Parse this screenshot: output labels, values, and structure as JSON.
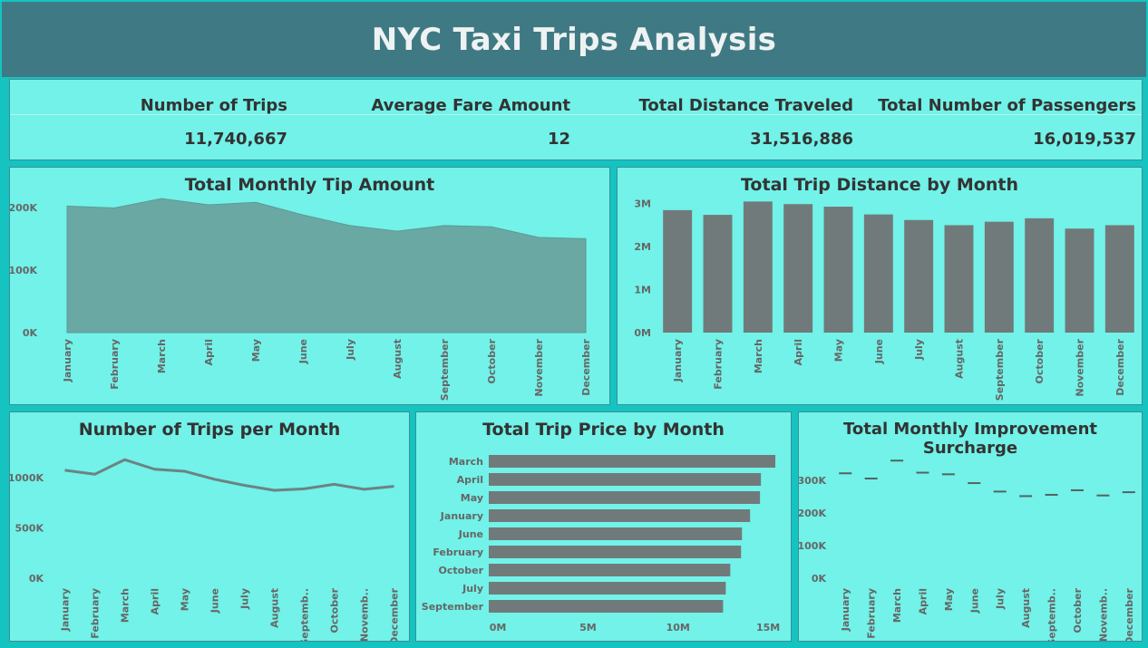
{
  "title": "NYC Taxi Trips Analysis",
  "kpis": [
    {
      "label": "Number of Trips",
      "value": "11,740,667"
    },
    {
      "label": "Average Fare Amount",
      "value": "12"
    },
    {
      "label": "Total Distance Traveled",
      "value": "31,516,886"
    },
    {
      "label": "Total Number of Passengers",
      "value": "16,019,537"
    }
  ],
  "chart_data": [
    {
      "id": "tip",
      "type": "area",
      "title": "Total Monthly Tip Amount",
      "categories": [
        "January",
        "February",
        "March",
        "April",
        "May",
        "June",
        "July",
        "August",
        "September",
        "October",
        "November",
        "December"
      ],
      "values": [
        202000,
        199000,
        214000,
        204000,
        208000,
        188000,
        171000,
        162000,
        171000,
        169000,
        152000,
        150000
      ],
      "yticks": [
        {
          "v": 0,
          "label": "0K"
        },
        {
          "v": 100000,
          "label": "100K"
        },
        {
          "v": 200000,
          "label": "200K"
        }
      ],
      "ylim": [
        0,
        220000
      ],
      "color": "#6aa9a3"
    },
    {
      "id": "distance",
      "type": "bar",
      "title": "Total Trip Distance by Month",
      "categories": [
        "January",
        "February",
        "March",
        "April",
        "May",
        "June",
        "July",
        "August",
        "September",
        "October",
        "November",
        "December"
      ],
      "values": [
        2850000,
        2740000,
        3050000,
        2990000,
        2930000,
        2750000,
        2620000,
        2500000,
        2580000,
        2660000,
        2420000,
        2500000
      ],
      "yticks": [
        {
          "v": 0,
          "label": "0M"
        },
        {
          "v": 1000000,
          "label": "1M"
        },
        {
          "v": 2000000,
          "label": "2M"
        },
        {
          "v": 3000000,
          "label": "3M"
        }
      ],
      "ylim": [
        0,
        3100000
      ],
      "color": "#717a7a"
    },
    {
      "id": "trips",
      "type": "line",
      "title": "Number of Trips per Month",
      "categories": [
        "January",
        "February",
        "March",
        "April",
        "May",
        "June",
        "July",
        "August",
        "Septemb..",
        "October",
        "Novemb..",
        "December"
      ],
      "values": [
        1075000,
        1035000,
        1180000,
        1085000,
        1065000,
        985000,
        925000,
        875000,
        890000,
        935000,
        885000,
        915000
      ],
      "yticks": [
        {
          "v": 0,
          "label": "0K"
        },
        {
          "v": 500000,
          "label": "500K"
        },
        {
          "v": 1000000,
          "label": "1000K"
        }
      ],
      "ylim": [
        0,
        1200000
      ],
      "color": "#6c8383"
    },
    {
      "id": "price",
      "type": "bar",
      "orientation": "horizontal",
      "title": "Total Trip Price by Month",
      "categories": [
        "March",
        "April",
        "May",
        "January",
        "June",
        "February",
        "October",
        "July",
        "September"
      ],
      "values": [
        15900000,
        15100000,
        15050000,
        14500000,
        14050000,
        14000000,
        13400000,
        13150000,
        13000000
      ],
      "xticks": [
        {
          "v": 0,
          "label": "0M"
        },
        {
          "v": 5000000,
          "label": "5M"
        },
        {
          "v": 10000000,
          "label": "10M"
        },
        {
          "v": 15000000,
          "label": "15M"
        }
      ],
      "xlim": [
        0,
        16000000
      ],
      "color": "#717a7a"
    },
    {
      "id": "surcharge",
      "type": "scatter",
      "title": "Total Monthly Improvement Surcharge",
      "categories": [
        "January",
        "February",
        "March",
        "April",
        "May",
        "June",
        "July",
        "August",
        "Septemb..",
        "October",
        "Novemb..",
        "December"
      ],
      "values": [
        322000,
        306000,
        361000,
        324000,
        319000,
        292000,
        266000,
        252000,
        256000,
        270000,
        254000,
        264000
      ],
      "yticks": [
        {
          "v": 0,
          "label": "0K"
        },
        {
          "v": 100000,
          "label": "100K"
        },
        {
          "v": 200000,
          "label": "200K"
        },
        {
          "v": 300000,
          "label": "300K"
        }
      ],
      "ylim": [
        0,
        370000
      ],
      "color": "#556262"
    }
  ]
}
